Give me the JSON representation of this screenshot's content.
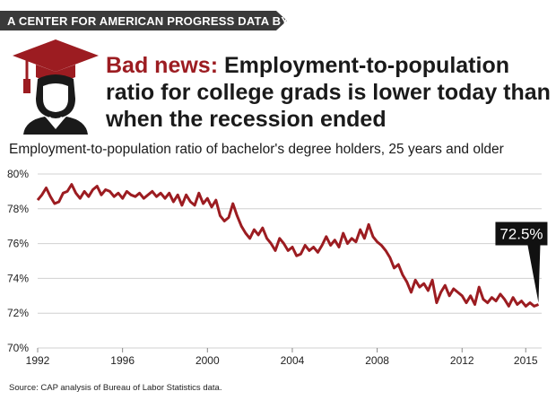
{
  "banner": {
    "text": "A CENTER FOR AMERICAN PROGRESS DATA BYTE"
  },
  "headline": {
    "lead": "Bad news:",
    "text": " Employment-to-population ratio for college grads is lower today than when the recession ended"
  },
  "icon": "graduate-cap-icon",
  "colors": {
    "accent": "#9c1c21",
    "banner": "#3a3a3a",
    "grid": "#d0d0d0"
  },
  "source": "Source: CAP analysis of Bureau of Labor Statistics data.",
  "chart_data": {
    "type": "line",
    "title": "Employment-to-population ratio of bachelor's degree holders, 25 years and older",
    "xlabel": "",
    "ylabel": "",
    "ylim": [
      70,
      80
    ],
    "xlim": [
      1992,
      2015.75
    ],
    "y_ticks": [
      "70%",
      "72%",
      "74%",
      "76%",
      "78%",
      "80%"
    ],
    "y_tick_values": [
      70,
      72,
      74,
      76,
      78,
      80
    ],
    "x_ticks": [
      "1992",
      "1996",
      "2000",
      "2004",
      "2008",
      "2012",
      "2015"
    ],
    "x_tick_values": [
      1992,
      1996,
      2000,
      2004,
      2008,
      2012,
      2015
    ],
    "grid": true,
    "series": [
      {
        "values": [
          [
            1992.0,
            78.5
          ],
          [
            1992.2,
            78.8
          ],
          [
            1992.4,
            79.2
          ],
          [
            1992.6,
            78.7
          ],
          [
            1992.8,
            78.3
          ],
          [
            1993.0,
            78.4
          ],
          [
            1993.2,
            78.9
          ],
          [
            1993.4,
            79.0
          ],
          [
            1993.6,
            79.4
          ],
          [
            1993.8,
            78.9
          ],
          [
            1994.0,
            78.6
          ],
          [
            1994.2,
            79.0
          ],
          [
            1994.4,
            78.7
          ],
          [
            1994.6,
            79.1
          ],
          [
            1994.8,
            79.3
          ],
          [
            1995.0,
            78.8
          ],
          [
            1995.2,
            79.1
          ],
          [
            1995.4,
            79.0
          ],
          [
            1995.6,
            78.7
          ],
          [
            1995.8,
            78.9
          ],
          [
            1996.0,
            78.6
          ],
          [
            1996.2,
            79.0
          ],
          [
            1996.4,
            78.8
          ],
          [
            1996.6,
            78.7
          ],
          [
            1996.8,
            78.9
          ],
          [
            1997.0,
            78.6
          ],
          [
            1997.2,
            78.8
          ],
          [
            1997.4,
            79.0
          ],
          [
            1997.6,
            78.7
          ],
          [
            1997.8,
            78.9
          ],
          [
            1998.0,
            78.6
          ],
          [
            1998.2,
            78.9
          ],
          [
            1998.4,
            78.4
          ],
          [
            1998.6,
            78.8
          ],
          [
            1998.8,
            78.2
          ],
          [
            1999.0,
            78.8
          ],
          [
            1999.2,
            78.4
          ],
          [
            1999.4,
            78.2
          ],
          [
            1999.6,
            78.9
          ],
          [
            1999.8,
            78.3
          ],
          [
            2000.0,
            78.6
          ],
          [
            2000.2,
            78.1
          ],
          [
            2000.4,
            78.5
          ],
          [
            2000.6,
            77.6
          ],
          [
            2000.8,
            77.3
          ],
          [
            2001.0,
            77.5
          ],
          [
            2001.2,
            78.3
          ],
          [
            2001.4,
            77.6
          ],
          [
            2001.6,
            77.0
          ],
          [
            2001.8,
            76.6
          ],
          [
            2002.0,
            76.3
          ],
          [
            2002.2,
            76.8
          ],
          [
            2002.4,
            76.5
          ],
          [
            2002.6,
            76.9
          ],
          [
            2002.8,
            76.3
          ],
          [
            2003.0,
            76.0
          ],
          [
            2003.2,
            75.6
          ],
          [
            2003.4,
            76.3
          ],
          [
            2003.6,
            76.0
          ],
          [
            2003.8,
            75.6
          ],
          [
            2004.0,
            75.8
          ],
          [
            2004.2,
            75.3
          ],
          [
            2004.4,
            75.4
          ],
          [
            2004.6,
            75.9
          ],
          [
            2004.8,
            75.6
          ],
          [
            2005.0,
            75.8
          ],
          [
            2005.2,
            75.5
          ],
          [
            2005.4,
            75.9
          ],
          [
            2005.6,
            76.4
          ],
          [
            2005.8,
            75.9
          ],
          [
            2006.0,
            76.2
          ],
          [
            2006.2,
            75.8
          ],
          [
            2006.4,
            76.6
          ],
          [
            2006.6,
            76.0
          ],
          [
            2006.8,
            76.3
          ],
          [
            2007.0,
            76.1
          ],
          [
            2007.2,
            76.8
          ],
          [
            2007.4,
            76.3
          ],
          [
            2007.6,
            77.1
          ],
          [
            2007.8,
            76.4
          ],
          [
            2008.0,
            76.1
          ],
          [
            2008.2,
            75.9
          ],
          [
            2008.4,
            75.6
          ],
          [
            2008.6,
            75.2
          ],
          [
            2008.8,
            74.6
          ],
          [
            2009.0,
            74.8
          ],
          [
            2009.2,
            74.2
          ],
          [
            2009.4,
            73.8
          ],
          [
            2009.6,
            73.2
          ],
          [
            2009.8,
            73.9
          ],
          [
            2010.0,
            73.5
          ],
          [
            2010.2,
            73.7
          ],
          [
            2010.4,
            73.3
          ],
          [
            2010.6,
            73.9
          ],
          [
            2010.8,
            72.6
          ],
          [
            2011.0,
            73.2
          ],
          [
            2011.2,
            73.6
          ],
          [
            2011.4,
            73.0
          ],
          [
            2011.6,
            73.4
          ],
          [
            2011.8,
            73.2
          ],
          [
            2012.0,
            73.0
          ],
          [
            2012.2,
            72.6
          ],
          [
            2012.4,
            73.0
          ],
          [
            2012.6,
            72.5
          ],
          [
            2012.8,
            73.5
          ],
          [
            2013.0,
            72.8
          ],
          [
            2013.2,
            72.6
          ],
          [
            2013.4,
            72.9
          ],
          [
            2013.6,
            72.7
          ],
          [
            2013.8,
            73.1
          ],
          [
            2014.0,
            72.8
          ],
          [
            2014.2,
            72.4
          ],
          [
            2014.4,
            72.9
          ],
          [
            2014.6,
            72.5
          ],
          [
            2014.8,
            72.7
          ],
          [
            2015.0,
            72.4
          ],
          [
            2015.2,
            72.6
          ],
          [
            2015.4,
            72.4
          ],
          [
            2015.6,
            72.5
          ]
        ]
      }
    ],
    "annotations": [
      {
        "text": "72.5%",
        "x": 2015.6,
        "y": 72.5
      }
    ]
  }
}
